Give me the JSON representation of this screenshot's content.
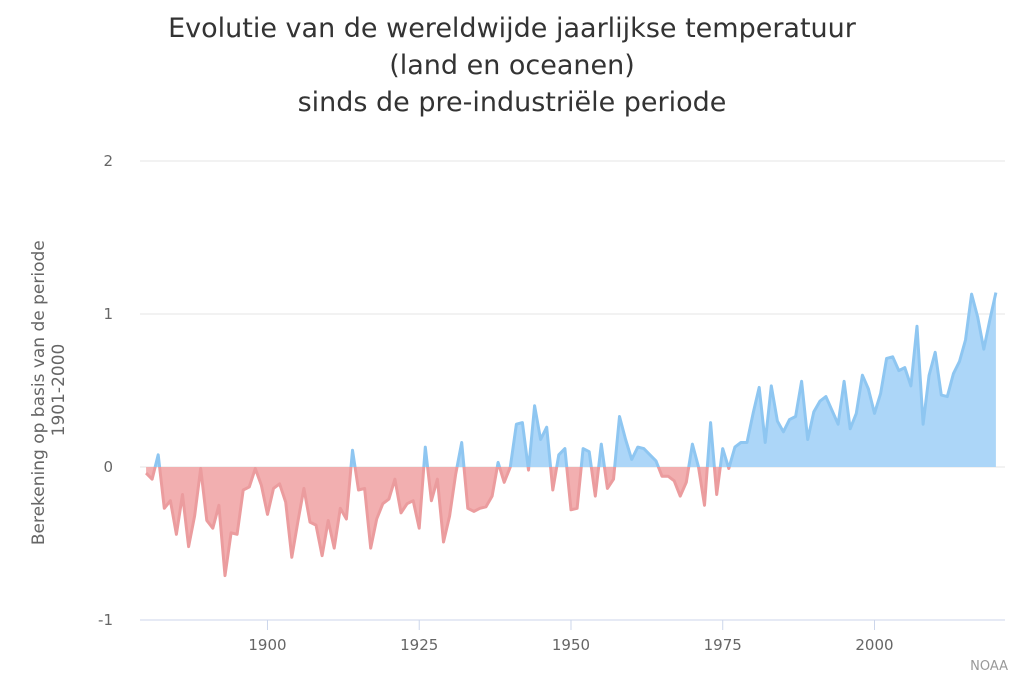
{
  "chart_data": {
    "type": "area",
    "title": [
      "Evolutie van de wereldwijde jaarlijkse temperatuur",
      "(land en oceanen)",
      "sinds de pre-industriële periode"
    ],
    "xlabel": "",
    "ylabel": [
      "Berekening op basis van de periode",
      "1901-2000"
    ],
    "x_start": 1880,
    "xlim": [
      1879,
      2021.5
    ],
    "ylim": [
      -1,
      2
    ],
    "x_ticks": [
      1900,
      1925,
      1950,
      1975,
      2000
    ],
    "y_ticks": [
      -1,
      0,
      1,
      2
    ],
    "grid": true,
    "legend": "none",
    "colors": {
      "positive_fill": "#acd6f8",
      "positive_line": "#8ec6f1",
      "negative_fill": "#f2afb0",
      "negative_line": "#eb9c9e"
    },
    "values": [
      -0.04,
      -0.08,
      0.08,
      -0.27,
      -0.22,
      -0.44,
      -0.18,
      -0.52,
      -0.32,
      -0.01,
      -0.35,
      -0.4,
      -0.25,
      -0.71,
      -0.43,
      -0.44,
      -0.15,
      -0.13,
      -0.01,
      -0.12,
      -0.31,
      -0.14,
      -0.11,
      -0.23,
      -0.59,
      -0.36,
      -0.14,
      -0.36,
      -0.38,
      -0.58,
      -0.35,
      -0.53,
      -0.27,
      -0.34,
      0.11,
      -0.15,
      -0.14,
      -0.53,
      -0.34,
      -0.24,
      -0.21,
      -0.08,
      -0.3,
      -0.24,
      -0.22,
      -0.4,
      0.13,
      -0.22,
      -0.08,
      -0.49,
      -0.32,
      -0.05,
      0.16,
      -0.27,
      -0.29,
      -0.27,
      -0.26,
      -0.19,
      0.03,
      -0.1,
      0.0,
      0.28,
      0.29,
      -0.02,
      0.4,
      0.18,
      0.26,
      -0.15,
      0.08,
      0.12,
      -0.28,
      -0.27,
      0.12,
      0.1,
      -0.19,
      0.15,
      -0.14,
      -0.08,
      0.33,
      0.18,
      0.05,
      0.13,
      0.12,
      0.08,
      0.04,
      -0.06,
      -0.06,
      -0.09,
      -0.19,
      -0.1,
      0.15,
      0.0,
      -0.25,
      0.29,
      -0.18,
      0.12,
      -0.01,
      0.13,
      0.16,
      0.16,
      0.35,
      0.52,
      0.16,
      0.53,
      0.3,
      0.23,
      0.31,
      0.33,
      0.56,
      0.18,
      0.36,
      0.43,
      0.46,
      0.37,
      0.28,
      0.56,
      0.25,
      0.35,
      0.6,
      0.51,
      0.35,
      0.48,
      0.71,
      0.72,
      0.63,
      0.65,
      0.53,
      0.92,
      0.28,
      0.6,
      0.75,
      0.47,
      0.46,
      0.61,
      0.69,
      0.83,
      1.13,
      0.98,
      0.77,
      0.96,
      1.14
    ]
  },
  "credit": "NOAA"
}
